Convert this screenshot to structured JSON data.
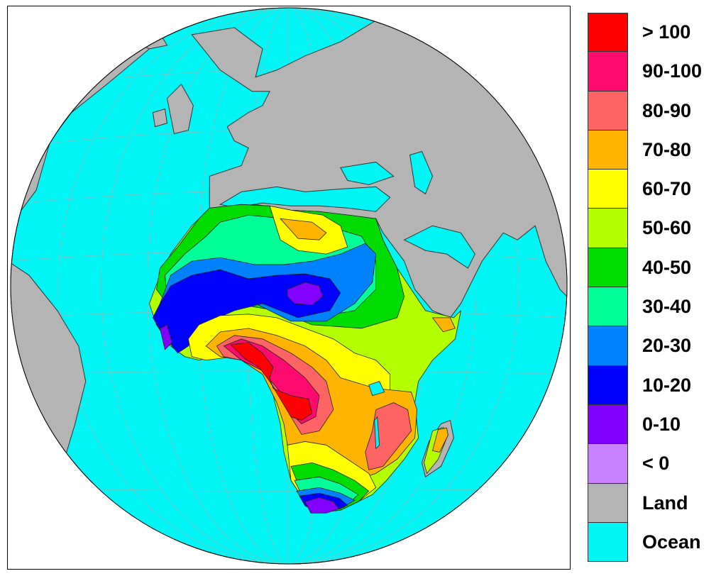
{
  "map": {
    "projection": "orthographic globe centered on Africa",
    "colors": {
      "land": "#b4b4b4",
      "ocean": "#00f5f5",
      "coast": "#333333",
      "grid": "#9ab8b8",
      "frame": "#000000"
    }
  },
  "legend": {
    "items": [
      {
        "label": "> 100",
        "color": "#ff0000"
      },
      {
        "label": "90-100",
        "color": "#ff0a6e"
      },
      {
        "label": "80-90",
        "color": "#ff6464"
      },
      {
        "label": "70-80",
        "color": "#ffb400"
      },
      {
        "label": "60-70",
        "color": "#ffff00"
      },
      {
        "label": "50-60",
        "color": "#b4ff00"
      },
      {
        "label": "40-50",
        "color": "#00dc00"
      },
      {
        "label": "30-40",
        "color": "#00ff96"
      },
      {
        "label": "20-30",
        "color": "#0082ff"
      },
      {
        "label": "10-20",
        "color": "#0000ff"
      },
      {
        "label": "0-10",
        "color": "#8200ff"
      },
      {
        "label": "< 0",
        "color": "#c882ff"
      },
      {
        "label": "Land",
        "color": "#b4b4b4"
      },
      {
        "label": "Ocean",
        "color": "#00f5f5"
      }
    ]
  }
}
